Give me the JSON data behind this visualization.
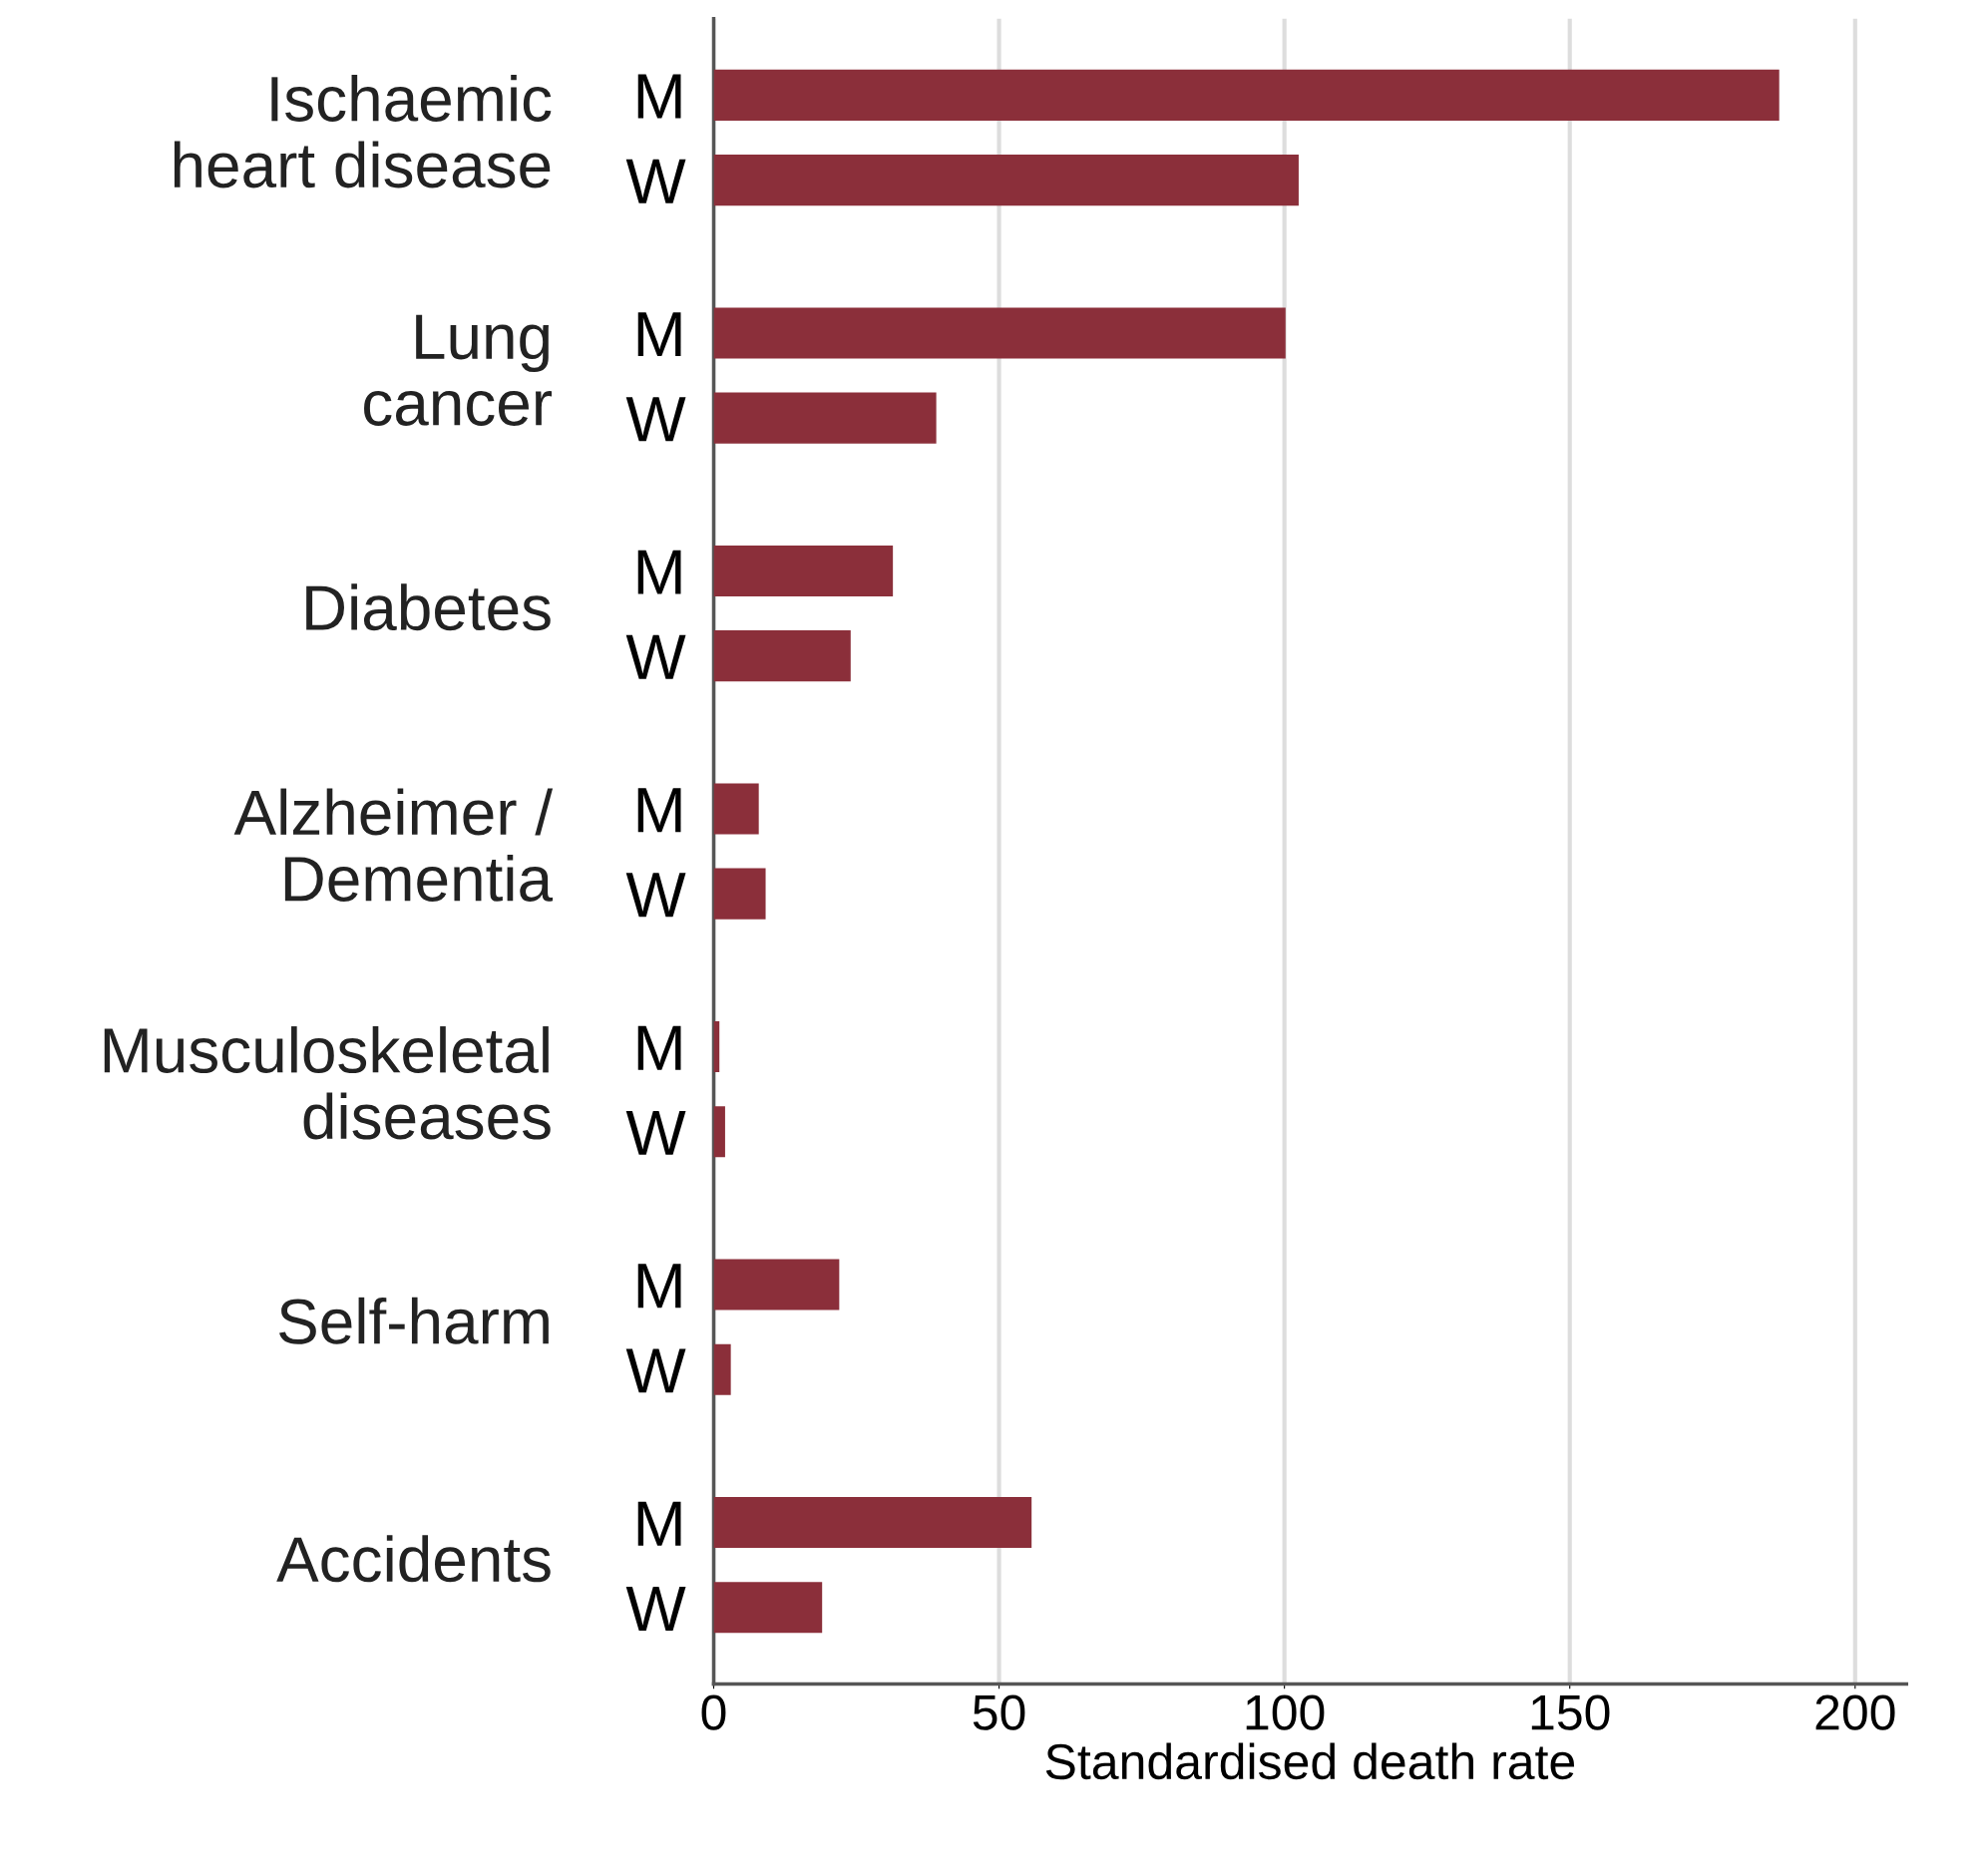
{
  "chart_data": {
    "type": "bar",
    "orientation": "horizontal",
    "categories": [
      "M",
      "W",
      "M",
      "W",
      "M",
      "W",
      "M",
      "W",
      "M",
      "W",
      "M",
      "W",
      "M",
      "W"
    ],
    "values": [
      186.7,
      102.5,
      100.2,
      39,
      31.4,
      24,
      7.9,
      9.1,
      1,
      2,
      22,
      3,
      55.7,
      19
    ],
    "color": "#8b2f3a",
    "xlabel": "Standardised death rate",
    "xlim": [
      0,
      209
    ],
    "xticks": [
      0,
      50,
      100,
      150,
      200
    ],
    "grid": "x",
    "annotations": [
      "Ischaemic\nheart disease",
      "Lung\ncancer",
      "Diabetes",
      "Alzheimer /\nDementia",
      "Musculoskeletal\ndiseases",
      "Self-harm",
      "Accidents"
    ]
  }
}
